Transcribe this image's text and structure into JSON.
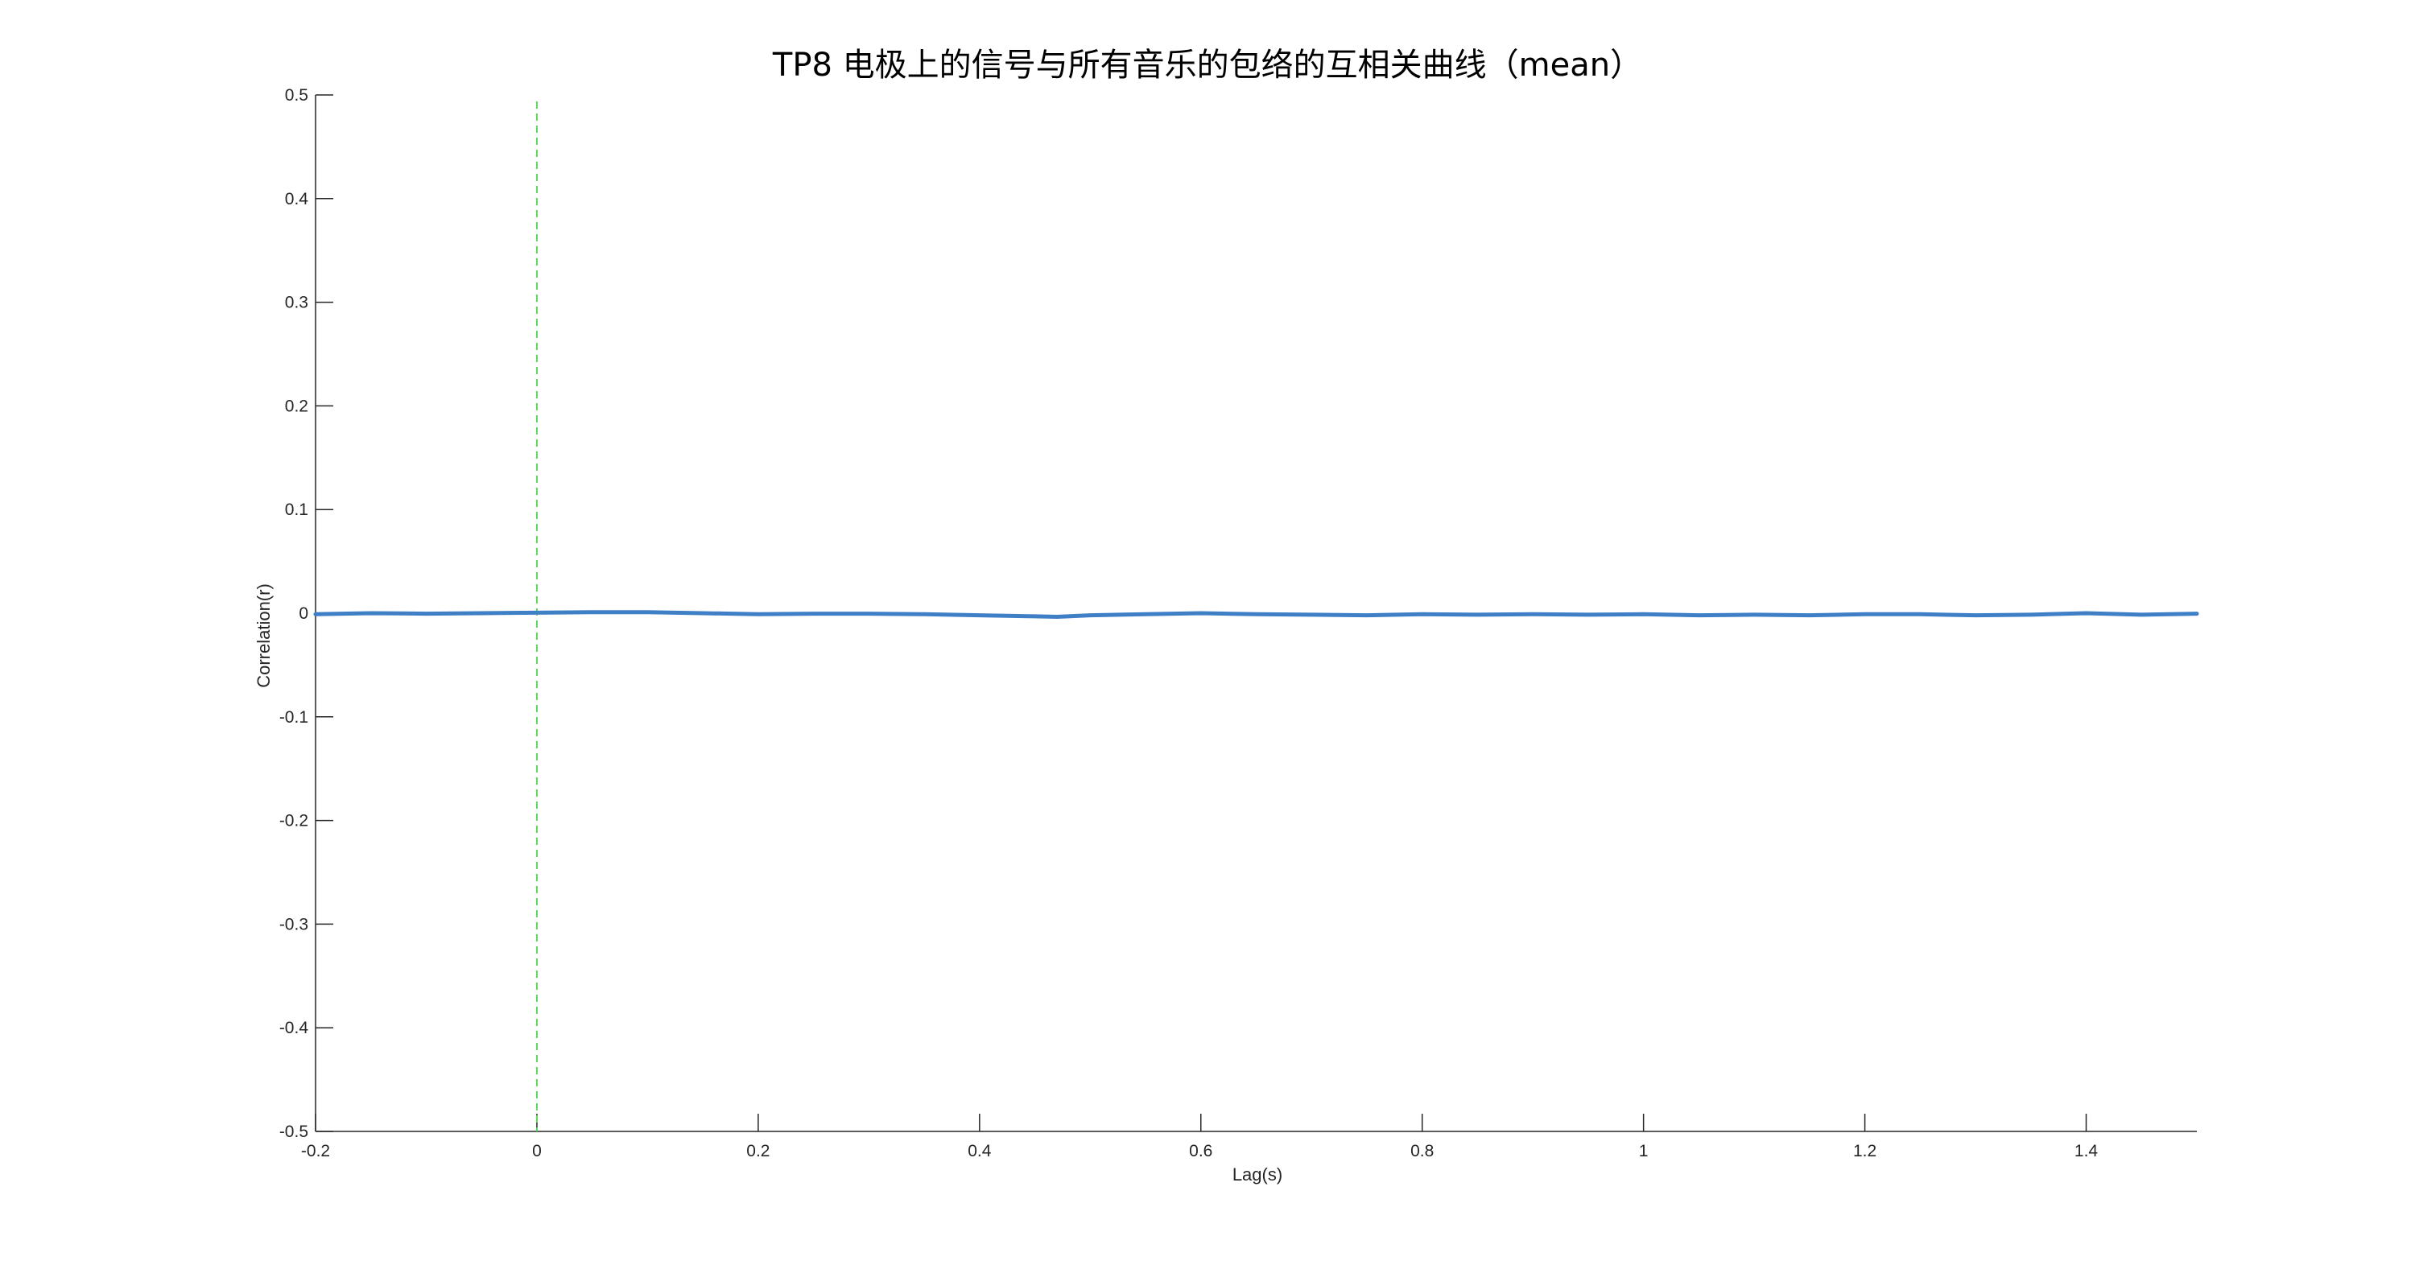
{
  "chart_data": {
    "type": "line",
    "title": "TP8 电极上的信号与所有音乐的包络的互相关曲线（mean）",
    "xlabel": "Lag(s)",
    "ylabel": "Correlation(r)",
    "xlim": [
      -0.2,
      1.5
    ],
    "ylim": [
      -0.5,
      0.5
    ],
    "xticks": [
      -0.2,
      0,
      0.2,
      0.4,
      0.6,
      0.8,
      1,
      1.2,
      1.4
    ],
    "xtick_labels": [
      "-0.2",
      "0",
      "0.2",
      "0.4",
      "0.6",
      "0.8",
      "1",
      "1.2",
      "1.4"
    ],
    "yticks": [
      0.5,
      0.4,
      0.3,
      0.2,
      0.1,
      0,
      -0.1,
      -0.2,
      -0.3,
      -0.4,
      -0.5
    ],
    "ytick_labels": [
      "0.5",
      "0.4",
      "0.3",
      "0.2",
      "0.1",
      "0",
      "-0.1",
      "-0.2",
      "-0.3",
      "-0.4",
      "-0.5"
    ],
    "grid": false,
    "series": [
      {
        "color": "#3f7fc6",
        "x": [
          -0.2,
          -0.15,
          -0.1,
          -0.05,
          0,
          0.05,
          0.1,
          0.15,
          0.2,
          0.25,
          0.3,
          0.35,
          0.4,
          0.45,
          0.47,
          0.5,
          0.55,
          0.6,
          0.65,
          0.7,
          0.75,
          0.8,
          0.85,
          0.9,
          0.95,
          1.0,
          1.05,
          1.1,
          1.15,
          1.2,
          1.25,
          1.3,
          1.35,
          1.4,
          1.45,
          1.5
        ],
        "y": [
          -0.001,
          0.0,
          -0.0005,
          0.0,
          0.0005,
          0.001,
          0.001,
          0.0,
          -0.001,
          -0.0005,
          -0.0005,
          -0.001,
          -0.002,
          -0.003,
          -0.0035,
          -0.002,
          -0.001,
          0.0,
          -0.001,
          -0.0015,
          -0.002,
          -0.001,
          -0.0015,
          -0.001,
          -0.0015,
          -0.001,
          -0.002,
          -0.0015,
          -0.002,
          -0.001,
          -0.001,
          -0.002,
          -0.0015,
          0.0,
          -0.0015,
          -0.0005
        ]
      }
    ],
    "reference_line": {
      "x": 0,
      "color": "#5cd65c",
      "style": "dashed"
    }
  }
}
